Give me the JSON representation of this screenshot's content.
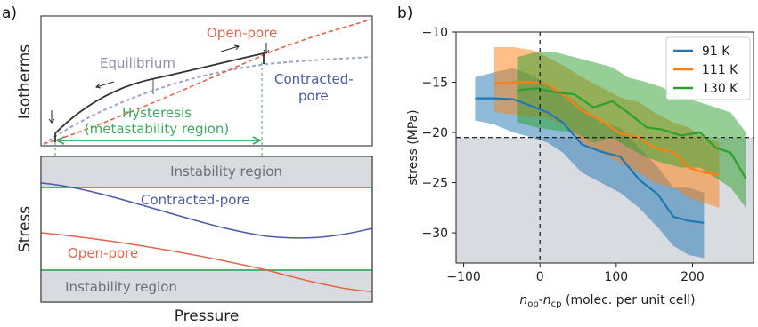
{
  "chart_data": [
    {
      "panel_label": "a)",
      "type": "line",
      "subpanels": [
        {
          "ylabel": "Isotherms",
          "annotations": {
            "open_pore": "Open-pore",
            "equilibrium": "Equilibrium",
            "contracted_pore_line1": "Contracted-",
            "contracted_pore_line2": "pore",
            "hysteresis_line1": "Hysteresis",
            "hysteresis_line2": "(metastability region)"
          },
          "colors": {
            "open_pore": "#e0644a",
            "contracted_pore": "#4a5aa8",
            "equilibrium": "#9090a8",
            "hysteresis": "#3aaa5e",
            "path": "#333333"
          }
        },
        {
          "ylabel": "Stress",
          "xlabel": "Pressure",
          "annotations": {
            "instability_top": "Instability region",
            "contracted_pore": "Contracted-pore",
            "open_pore": "Open-pore",
            "instability_bottom": "Instability region"
          },
          "colors": {
            "instability": "#d8dbe0",
            "threshold": "#3aaa5e",
            "contracted_pore": "#4a5aa8",
            "open_pore": "#e0644a"
          }
        }
      ]
    },
    {
      "panel_label": "b)",
      "type": "line",
      "xlabel_parts": {
        "n1": "n",
        "sub1": "op",
        "dash": "-",
        "n2": "n",
        "sub2": "cp",
        "rest": " (molec. per unit cell)"
      },
      "ylabel": "stress (MPa)",
      "xlim": [
        -110,
        280
      ],
      "ylim": [
        -33,
        -10
      ],
      "xticks": [
        -100,
        0,
        100,
        200
      ],
      "yticks": [
        -10,
        -15,
        -20,
        -25,
        -30
      ],
      "reference_lines": {
        "x": 0,
        "y": -20.5
      },
      "shaded_region_below": -20.5,
      "series": [
        {
          "name": "91 K",
          "color": "#1f77b4",
          "x": [
            -85,
            -60,
            -35,
            -10,
            10,
            30,
            55,
            80,
            105,
            130,
            155,
            175,
            195,
            215
          ],
          "y": [
            -16.6,
            -16.6,
            -16.7,
            -17.4,
            -18.0,
            -19.0,
            -21.2,
            -21.9,
            -22.4,
            -24.7,
            -26.2,
            -28.4,
            -28.8,
            -29.0
          ],
          "upper": [
            -14.5,
            -14.0,
            -13.6,
            -14.3,
            -15.3,
            -16.0,
            -17.5,
            -19.0,
            -19.5,
            -21.5,
            -23.5,
            -25.5,
            -25.5,
            -26.0
          ],
          "lower": [
            -18.8,
            -19.2,
            -20.0,
            -20.5,
            -21.0,
            -22.0,
            -24.0,
            -25.0,
            -26.0,
            -27.5,
            -29.5,
            -31.3,
            -32.2,
            -32.5
          ]
        },
        {
          "name": "111 K",
          "color": "#ff7f0e",
          "x": [
            -60,
            -35,
            -10,
            10,
            35,
            55,
            80,
            105,
            130,
            150,
            175,
            195,
            215,
            235
          ],
          "y": [
            -15.1,
            -15.0,
            -15.0,
            -15.2,
            -16.5,
            -17.8,
            -18.8,
            -20.1,
            -20.5,
            -21.5,
            -22.0,
            -23.5,
            -24.0,
            -24.2
          ],
          "upper": [
            -11.5,
            -11.5,
            -11.8,
            -12.5,
            -13.5,
            -14.5,
            -15.5,
            -16.5,
            -17.0,
            -18.0,
            -19.0,
            -19.5,
            -20.5,
            -21.0
          ],
          "lower": [
            -18.0,
            -18.2,
            -18.5,
            -18.5,
            -19.5,
            -21.0,
            -22.0,
            -23.0,
            -24.0,
            -25.0,
            -25.5,
            -26.5,
            -27.0,
            -27.5
          ]
        },
        {
          "name": "130 K",
          "color": "#2ca02c",
          "x": [
            -30,
            -5,
            20,
            45,
            70,
            95,
            115,
            140,
            160,
            185,
            210,
            230,
            250,
            270
          ],
          "y": [
            -15.8,
            -15.6,
            -16.0,
            -16.2,
            -17.5,
            -16.9,
            -18.0,
            -19.5,
            -19.7,
            -20.3,
            -20.0,
            -21.5,
            -22.0,
            -24.6
          ],
          "upper": [
            -12.5,
            -12.0,
            -12.0,
            -12.5,
            -13.0,
            -13.5,
            -14.5,
            -15.0,
            -15.5,
            -16.5,
            -17.0,
            -17.5,
            -18.0,
            -20.0
          ],
          "lower": [
            -19.0,
            -19.5,
            -19.8,
            -20.0,
            -21.0,
            -20.5,
            -21.5,
            -22.5,
            -23.0,
            -23.5,
            -23.5,
            -24.5,
            -25.5,
            -27.5
          ]
        }
      ],
      "legend_position": "top-right",
      "shade_color": "#d8dbe0"
    }
  ]
}
